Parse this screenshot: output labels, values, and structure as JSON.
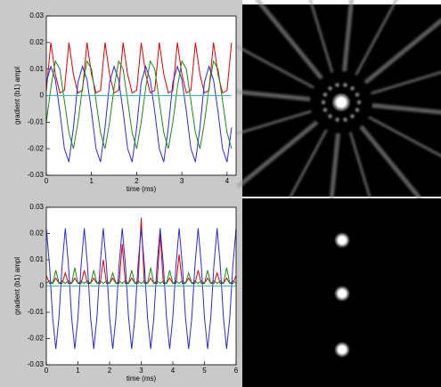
{
  "chart_data": [
    {
      "type": "line",
      "xlabel": "time (ms)",
      "ylabel": "gradient (b1) ampl",
      "x": [
        0,
        0.1,
        0.2,
        0.3,
        0.4,
        0.5,
        0.6,
        0.7,
        0.8,
        0.9,
        1,
        1.1,
        1.2,
        1.3,
        1.4,
        1.5,
        1.6,
        1.7,
        1.8,
        1.9,
        2,
        2.1,
        2.2,
        2.3,
        2.4,
        2.5,
        2.6,
        2.7,
        2.8,
        2.9,
        3,
        3.1,
        3.2,
        3.3,
        3.4,
        3.5,
        3.6,
        3.7,
        3.8,
        3.9,
        4,
        4.1
      ],
      "xlim": [
        0,
        4.2
      ],
      "xticks": [
        0,
        1,
        2,
        3,
        4
      ],
      "ylim": [
        -0.03,
        0.03
      ],
      "yticks": [
        0.03,
        0.02,
        0.01,
        0,
        -0.01,
        -0.02,
        -0.03
      ],
      "series": [
        {
          "color": "#dd0000",
          "values": [
            0.002,
            0.02,
            0.008,
            0.001,
            0.002,
            0.02,
            0.008,
            0.001,
            0.002,
            0.02,
            0.008,
            0.001,
            0.002,
            0.02,
            0.008,
            0.001,
            0.002,
            0.02,
            0.008,
            0.001,
            0.002,
            0.02,
            0.008,
            0.001,
            0.002,
            0.02,
            0.008,
            0.001,
            0.002,
            0.02,
            0.008,
            0.001,
            0.002,
            0.02,
            0.008,
            0.001,
            0.002,
            0.02,
            0.008,
            0.001,
            0.002,
            0.02
          ]
        },
        {
          "color": "#2a2ad8",
          "values": [
            0.005,
            0.011,
            0.006,
            -0.006,
            -0.02,
            -0.025,
            -0.012,
            0.005,
            0.011,
            0.006,
            -0.006,
            -0.02,
            -0.025,
            -0.012,
            0.005,
            0.011,
            0.006,
            -0.006,
            -0.02,
            -0.025,
            -0.012,
            0.005,
            0.011,
            0.006,
            -0.006,
            -0.02,
            -0.025,
            -0.012,
            0.005,
            0.011,
            0.006,
            -0.006,
            -0.02,
            -0.025,
            -0.012,
            0.005,
            0.011,
            0.006,
            -0.006,
            -0.02,
            -0.025,
            -0.012
          ]
        },
        {
          "color": "#1a8a1a",
          "values": [
            -0.01,
            0.003,
            0.013,
            0.01,
            -0.002,
            -0.014,
            -0.02,
            -0.01,
            0.003,
            0.013,
            0.01,
            -0.002,
            -0.014,
            -0.02,
            -0.01,
            0.003,
            0.013,
            0.01,
            -0.002,
            -0.014,
            -0.02,
            -0.01,
            0.003,
            0.013,
            0.01,
            -0.002,
            -0.014,
            -0.02,
            -0.01,
            0.003,
            0.013,
            0.01,
            -0.002,
            -0.014,
            -0.02,
            -0.01,
            0.003,
            0.013,
            0.01,
            -0.002,
            -0.014,
            -0.02
          ]
        },
        {
          "color": "#20c0c0",
          "values": [
            0,
            0,
            0,
            0,
            0,
            0,
            0,
            0,
            0,
            0,
            0,
            0,
            0,
            0,
            0,
            0,
            0,
            0,
            0,
            0,
            0,
            0,
            0,
            0,
            0,
            0,
            0,
            0,
            0,
            0,
            0,
            0,
            0,
            0,
            0,
            0,
            0,
            0,
            0,
            0,
            0,
            0
          ]
        }
      ]
    },
    {
      "type": "line",
      "xlabel": "time (ms)",
      "ylabel": "gradient (b1) ampl",
      "x": [
        0,
        0.1,
        0.2,
        0.3,
        0.4,
        0.5,
        0.6,
        0.7,
        0.8,
        0.9,
        1,
        1.1,
        1.2,
        1.3,
        1.4,
        1.5,
        1.6,
        1.7,
        1.8,
        1.9,
        2,
        2.1,
        2.2,
        2.3,
        2.4,
        2.5,
        2.6,
        2.7,
        2.8,
        2.9,
        3,
        3.1,
        3.2,
        3.3,
        3.4,
        3.5,
        3.6,
        3.7,
        3.8,
        3.9,
        4,
        4.1,
        4.2,
        4.3,
        4.4,
        4.5,
        4.6,
        4.7,
        4.8,
        4.9,
        5,
        5.1,
        5.2,
        5.3,
        5.4,
        5.5,
        5.6,
        5.7,
        5.8,
        5.9,
        6
      ],
      "xlim": [
        0,
        6
      ],
      "xticks": [
        0,
        1,
        2,
        3,
        4,
        5,
        6
      ],
      "ylim": [
        -0.03,
        0.03
      ],
      "yticks": [
        0.03,
        0.02,
        0.01,
        0,
        -0.01,
        -0.02,
        -0.03
      ],
      "series": [
        {
          "color": "#dd0000",
          "values": [
            0.004,
            0.001,
            0.001,
            0.003,
            0.001,
            0.001,
            0.005,
            0.001,
            0.001,
            0.003,
            0.001,
            0.001,
            0.006,
            0.001,
            0.001,
            0.003,
            0.001,
            0.001,
            0.01,
            0.001,
            0.001,
            0.003,
            0.001,
            0.001,
            0.016,
            0.001,
            0.001,
            0.003,
            0.001,
            0.001,
            0.026,
            0.001,
            0.001,
            0.003,
            0.001,
            0.001,
            0.02,
            0.001,
            0.001,
            0.003,
            0.001,
            0.001,
            0.012,
            0.001,
            0.001,
            0.003,
            0.001,
            0.001,
            0.006,
            0.001,
            0.001,
            0.003,
            0.001,
            0.001,
            0.005,
            0.001,
            0.001,
            0.003,
            0.001,
            0.001,
            0.004
          ]
        },
        {
          "color": "#1a8a1a",
          "values": [
            0.001,
            0.002,
            0.001,
            0.006,
            0.001,
            0.002,
            0.001,
            0.002,
            0.001,
            0.007,
            0.001,
            0.002,
            0.001,
            0.002,
            0.001,
            0.006,
            0.001,
            0.002,
            0.001,
            0.002,
            0.001,
            0.005,
            0.001,
            0.002,
            0.001,
            0.002,
            0.001,
            0.006,
            0.001,
            0.002,
            0.001,
            0.002,
            0.001,
            0.007,
            0.001,
            0.002,
            0.001,
            0.002,
            0.001,
            0.006,
            0.001,
            0.002,
            0.001,
            0.002,
            0.001,
            0.005,
            0.001,
            0.002,
            0.001,
            0.002,
            0.001,
            0.006,
            0.001,
            0.002,
            0.001,
            0.002,
            0.001,
            0.007,
            0.001,
            0.002,
            0.001
          ]
        },
        {
          "color": "#2a2ad8",
          "values": [
            0.022,
            0.008,
            -0.012,
            -0.024,
            -0.012,
            0.008,
            0.022,
            0.008,
            -0.012,
            -0.024,
            -0.012,
            0.008,
            0.022,
            0.008,
            -0.012,
            -0.024,
            -0.012,
            0.008,
            0.022,
            0.008,
            -0.012,
            -0.024,
            -0.012,
            0.008,
            0.022,
            0.008,
            -0.012,
            -0.024,
            -0.012,
            0.008,
            0.022,
            0.008,
            -0.012,
            -0.024,
            -0.012,
            0.008,
            0.022,
            0.008,
            -0.012,
            -0.024,
            -0.012,
            0.008,
            0.022,
            0.008,
            -0.012,
            -0.024,
            -0.012,
            0.008,
            0.022,
            0.008,
            -0.012,
            -0.024,
            -0.012,
            0.008,
            0.022,
            0.008,
            -0.012,
            -0.024,
            -0.012,
            0.008,
            0.022
          ]
        },
        {
          "color": "#20c0c0",
          "values": [
            0,
            0,
            0,
            0,
            0,
            0,
            0,
            0,
            0,
            0,
            0,
            0,
            0,
            0,
            0,
            0,
            0,
            0,
            0,
            0,
            0,
            0,
            0,
            0,
            0,
            0,
            0,
            0,
            0,
            0,
            0,
            0,
            0,
            0,
            0,
            0,
            0,
            0,
            0,
            0,
            0,
            0,
            0,
            0,
            0,
            0,
            0,
            0,
            0,
            0,
            0,
            0,
            0,
            0,
            0,
            0,
            0,
            0,
            0,
            0,
            0
          ]
        }
      ]
    }
  ]
}
